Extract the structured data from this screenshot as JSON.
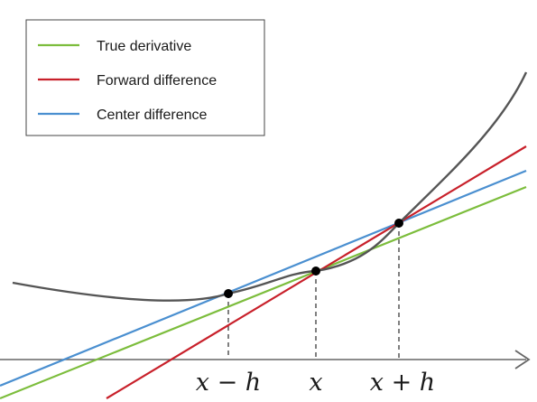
{
  "diagram": {
    "legend": {
      "placement": "top-left",
      "items": [
        {
          "label": "True derivative",
          "color": "#7cbd3c"
        },
        {
          "label": "Forward difference",
          "color": "#c8202a"
        },
        {
          "label": "Center difference",
          "color": "#4a8fd0"
        }
      ]
    },
    "curve": {
      "color": "#555555"
    },
    "points_color": "#000000",
    "axis_color": "#666666",
    "tick_labels": [
      "x − h",
      "x",
      "x + h"
    ]
  }
}
